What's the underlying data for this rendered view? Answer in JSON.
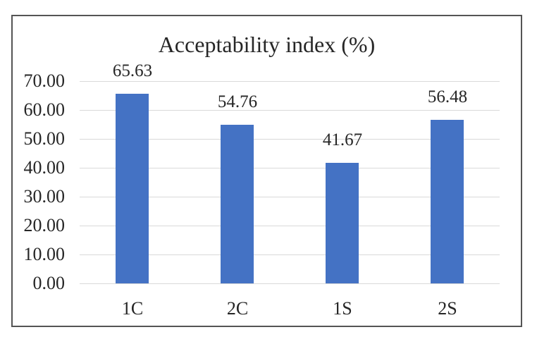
{
  "chart_data": {
    "type": "bar",
    "title": "Acceptability index (%)",
    "categories": [
      "1C",
      "2C",
      "1S",
      "2S"
    ],
    "values": [
      65.63,
      54.76,
      41.67,
      56.48
    ],
    "value_labels": [
      "65.63",
      "54.76",
      "41.67",
      "56.48"
    ],
    "y_ticks": [
      70,
      60,
      50,
      40,
      30,
      20,
      10,
      0
    ],
    "y_tick_labels": [
      "70.00",
      "60.00",
      "50.00",
      "40.00",
      "30.00",
      "20.00",
      "10.00",
      "0.00"
    ],
    "ylim": [
      0,
      70
    ],
    "grid": true,
    "legend": false,
    "xlabel": "",
    "ylabel": "",
    "colors": {
      "bar": "#4472C4",
      "gridline": "#D9D9D9",
      "text": "#262626",
      "frame_border": "#545454",
      "background": "#FFFFFF"
    }
  }
}
